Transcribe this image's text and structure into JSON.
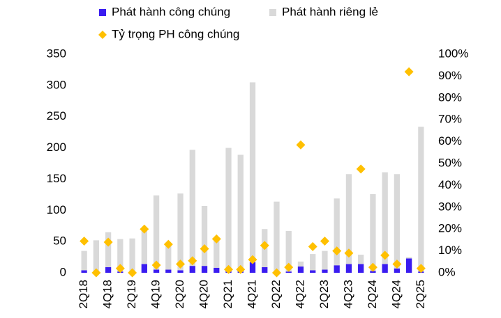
{
  "chart_data": {
    "type": "bar",
    "stacked": true,
    "categories": [
      "2Q18",
      null,
      "4Q18",
      null,
      "2Q19",
      null,
      "4Q19",
      null,
      "2Q20",
      null,
      "4Q20",
      null,
      "2Q21",
      null,
      "4Q21",
      null,
      "2Q22",
      null,
      "4Q22",
      null,
      "2Q23",
      null,
      "4Q23",
      null,
      "2Q24",
      null,
      "4Q24",
      null,
      "2Q25"
    ],
    "series": [
      {
        "name": "Phát hành công chúng",
        "color": "#3a1cf0",
        "values": [
          4,
          2,
          9,
          2,
          1,
          14,
          5,
          5,
          4,
          11,
          11,
          8,
          3,
          3,
          17,
          9,
          1,
          2,
          10,
          4,
          5,
          12,
          14,
          14,
          3,
          14,
          7,
          23,
          2
        ]
      },
      {
        "name": "Phát hành riêng lẻ",
        "color": "#d9d9d9",
        "values": [
          31,
          50,
          56,
          52,
          54,
          56,
          119,
          40,
          123,
          186,
          96,
          48,
          197,
          186,
          288,
          61,
          113,
          65,
          8,
          26,
          30,
          107,
          144,
          15,
          123,
          147,
          151,
          2,
          232
        ]
      },
      {
        "name": "Tỷ trọng PH công chúng",
        "color": "#ffc000",
        "axis": "y2",
        "marker": "diamond",
        "values": [
          14.5,
          0,
          14,
          2,
          0,
          20,
          3.5,
          13,
          4,
          5.5,
          11,
          15.5,
          1.5,
          1.5,
          6,
          12.5,
          0,
          2.5,
          58.5,
          12,
          14.5,
          10,
          9,
          47.5,
          2.5,
          8,
          4,
          92,
          2
        ]
      }
    ],
    "ylim": [
      0,
      350
    ],
    "yticks": [
      0,
      50,
      100,
      150,
      200,
      250,
      300,
      350
    ],
    "y2lim": [
      0,
      100
    ],
    "y2ticks": [
      {
        "value": 0,
        "label": "0%"
      },
      {
        "value": 10,
        "label": "10%"
      },
      {
        "value": 20,
        "label": "20%"
      },
      {
        "value": 30,
        "label": "30%"
      },
      {
        "value": 40,
        "label": "40%"
      },
      {
        "value": 50,
        "label": "50%"
      },
      {
        "value": 60,
        "label": "60%"
      },
      {
        "value": 70,
        "label": "70%"
      },
      {
        "value": 80,
        "label": "80%"
      },
      {
        "value": 90,
        "label": "90%"
      },
      {
        "value": 100,
        "label": "100%"
      }
    ],
    "grid": false
  }
}
